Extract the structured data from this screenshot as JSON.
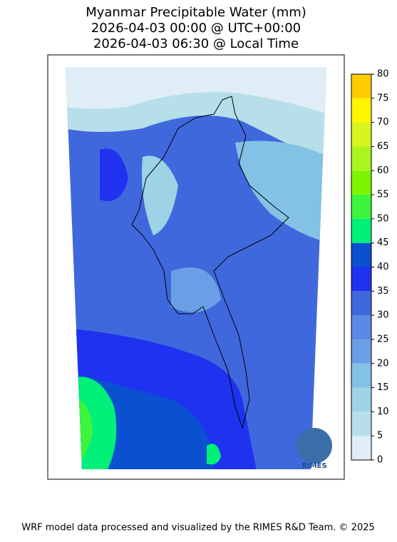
{
  "title": [
    "Myanmar Precipitable Water (mm)",
    "2026-04-03 00:00 @ UTC+00:00",
    "2026-04-03 06:30 @ Local Time"
  ],
  "colorbar": {
    "ticks": [
      0,
      5,
      10,
      15,
      20,
      25,
      30,
      35,
      40,
      45,
      50,
      55,
      60,
      65,
      70,
      75,
      80
    ],
    "colors": [
      "#dfeef6",
      "#b7dfe9",
      "#9dd3e5",
      "#83c1e5",
      "#6a9fe6",
      "#5a88e4",
      "#4068dd",
      "#1e32f0",
      "#0a50d0",
      "#00f07a",
      "#3cf53c",
      "#7df500",
      "#aaf51e",
      "#d8f51e",
      "#fff500",
      "#ffcc00"
    ]
  },
  "logo": "RIMES",
  "footer": "WRF model data processed and visualized by the RIMES R&D Team. © 2025"
}
